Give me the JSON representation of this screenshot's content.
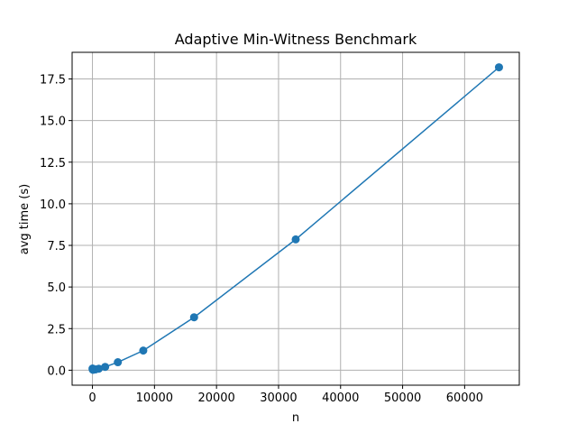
{
  "chart_data": {
    "type": "line",
    "title": "Adaptive Min-Witness Benchmark",
    "xlabel": "n",
    "ylabel": "avg time (s)",
    "xlim": [
      -3277,
      68812
    ],
    "ylim": [
      -0.9,
      19.1
    ],
    "grid": true,
    "x_ticks": [
      {
        "value": 0,
        "label": "0"
      },
      {
        "value": 10000,
        "label": "10000"
      },
      {
        "value": 20000,
        "label": "20000"
      },
      {
        "value": 30000,
        "label": "30000"
      },
      {
        "value": 40000,
        "label": "40000"
      },
      {
        "value": 50000,
        "label": "50000"
      },
      {
        "value": 60000,
        "label": "60000"
      }
    ],
    "y_ticks": [
      {
        "value": 0,
        "label": "0.0"
      },
      {
        "value": 2.5,
        "label": "2.5"
      },
      {
        "value": 5,
        "label": "5.0"
      },
      {
        "value": 7.5,
        "label": "7.5"
      },
      {
        "value": 10,
        "label": "10.0"
      },
      {
        "value": 12.5,
        "label": "12.5"
      },
      {
        "value": 15,
        "label": "15.0"
      },
      {
        "value": 17.5,
        "label": "17.5"
      }
    ],
    "series": [
      {
        "color": "#1f77b4",
        "x": [
          16,
          32,
          64,
          128,
          256,
          512,
          1024,
          2048,
          4096,
          8192,
          16384,
          32768,
          65536
        ],
        "y": [
          0.1,
          0.05,
          0.03,
          0.03,
          0.04,
          0.05,
          0.09,
          0.2,
          0.48,
          1.18,
          3.18,
          7.86,
          18.2
        ]
      }
    ]
  }
}
